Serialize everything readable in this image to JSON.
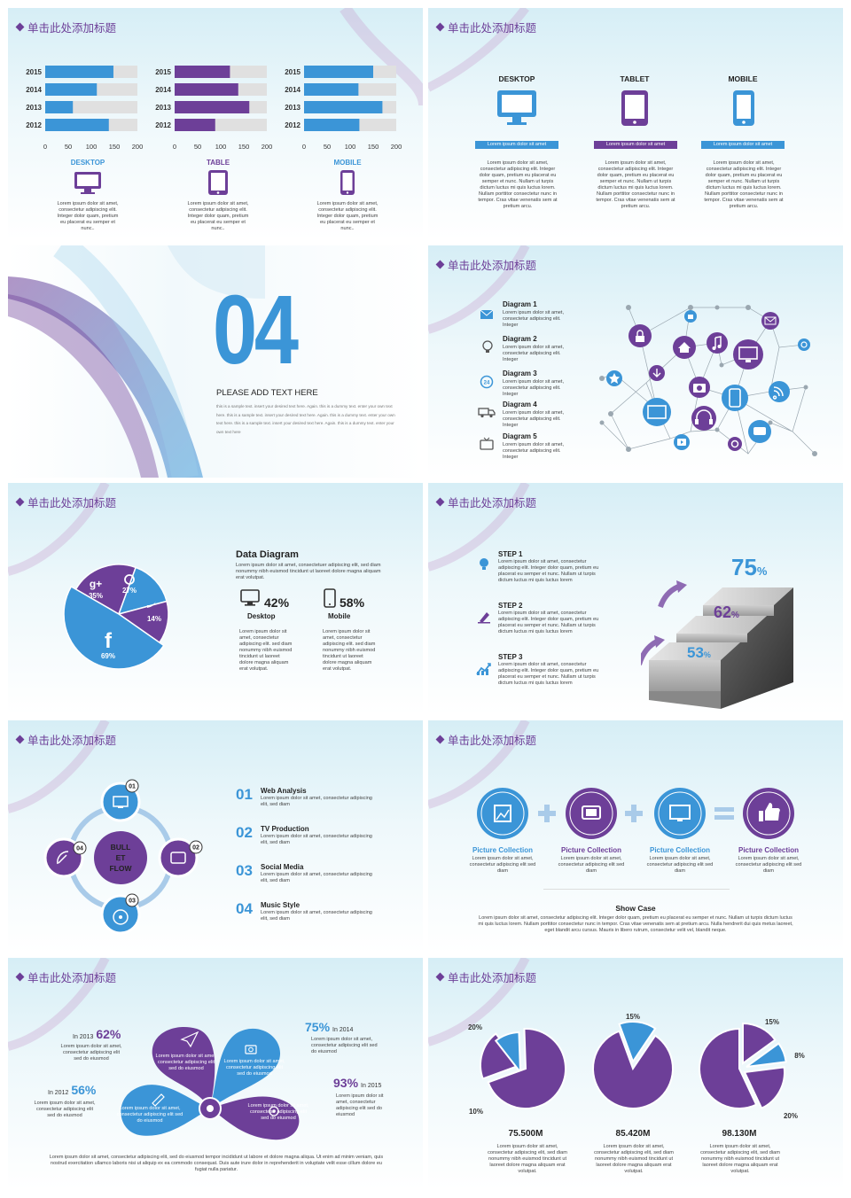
{
  "slide_title": "单击此处添加标题",
  "lorem_short": "Lorem ipsum dolor sit amet, consectetur adipiscing elit. Integer dolor quam, pretium eu placerat eu semper et nunc..",
  "lorem_mid": "Lorem ipsum dolor sit amet, consectetur adipiscing elit. Integer dolor quam, pretium eu placerat eu semper et nunc. Nullam ut turpis dictum luctus mi quis luctus lorem. Nullam porttitor consectetur nunc in tempor. Cras vitae venenatis sem at pretium arcu.",
  "lorem_step": "Lorem ipsum dolor sit amet, consectetur adipiscing elit. Integer dolor quam, pretium eu placerat eu semper et nunc. Nullam ut turpis dictum luctus mi quis luctus lorem",
  "lorem_diagram": "Lorem ipsum dolor sit amet, consectetur adipiscing elit. Integer",
  "lorem_col": "Lorem ipsum dolor sit amet, consectetur adipiscing elit. sed diam nonummy nibh euismod tincidunt ut laoreet dolore magna aliquam erat volutpat.",
  "lorem_two": "Lorem ipsum dolor sit amet, consectetur adipiscing elit, sed diam",
  "lorem_seddo": "Lorem ipsum dolor sit amet, consectetur adipiscing elit sed do eiusmod",
  "slide1": {
    "chart_data": [
      {
        "type": "bar",
        "orientation": "horizontal",
        "categories": [
          "2015",
          "2014",
          "2013",
          "2012"
        ],
        "values": [
          148,
          112,
          60,
          138
        ],
        "xlim": [
          0,
          200
        ],
        "xticks": [
          "0",
          "50",
          "100",
          "150",
          "200"
        ],
        "color": "#3b95d7"
      },
      {
        "type": "bar",
        "orientation": "horizontal",
        "categories": [
          "2015",
          "2014",
          "2013",
          "2012"
        ],
        "values": [
          120,
          138,
          162,
          88
        ],
        "xlim": [
          0,
          200
        ],
        "xticks": [
          "0",
          "50",
          "100",
          "150",
          "200"
        ],
        "color": "#6d3f98"
      },
      {
        "type": "bar",
        "orientation": "horizontal",
        "categories": [
          "2015",
          "2014",
          "2013",
          "2012"
        ],
        "values": [
          150,
          118,
          170,
          120
        ],
        "xlim": [
          0,
          200
        ],
        "xticks": [
          "0",
          "50",
          "100",
          "150",
          "200"
        ],
        "color": "#3b95d7"
      }
    ],
    "labels": [
      "DESKTOP",
      "TABLE",
      "MOBILE"
    ]
  },
  "slide2": {
    "devices": [
      "DESKTOP",
      "TABLET",
      "MOBILE"
    ],
    "bar_text": "Lorem ipsum dolor sit amet"
  },
  "slide3": {
    "number": "04",
    "heading": "PLEASE ADD TEXT HERE",
    "body": "this is a sample text. insert your desired text here. Again. this is a dummy text. enter your own text here. this is a sample text. insert your desired text here. Again. this is a dummy text. enter your own text here. this is a sample text. insert your desired text here. Again. this is a dummy text. enter your own text here"
  },
  "slide4": {
    "diagrams": [
      "Diagram 1",
      "Diagram 2",
      "Diagram 3",
      "Diagram 4",
      "Diagram 5"
    ]
  },
  "slide5": {
    "title": "Data Diagram",
    "intro": "Lorem ipsum dolor sit amet, consectetuer adipiscing elit, sed diam nonummy nibh euismod tincidunt ut laoreet dolore magna aliquam erat volutpat.",
    "desktop_pct": "42%",
    "desktop_label": "Desktop",
    "mobile_pct": "58%",
    "mobile_label": "Mobile",
    "chart_data": {
      "type": "pie",
      "slices": [
        {
          "name": "google-plus",
          "value": 35,
          "label": "35%"
        },
        {
          "name": "pinterest",
          "value": 27,
          "label": "27%"
        },
        {
          "name": "twitter",
          "value": 14,
          "label": "14%"
        },
        {
          "name": "facebook",
          "value": 69,
          "label": "69%"
        }
      ]
    }
  },
  "slide6": {
    "steps": [
      "STEP 1",
      "STEP 2",
      "STEP 3"
    ],
    "pcts": [
      "75",
      "62",
      "53"
    ],
    "pct_sign": "%"
  },
  "slide7": {
    "center": [
      "BULL",
      "ET",
      "FLOW"
    ],
    "nodes": [
      "01",
      "02",
      "03",
      "04"
    ],
    "items": [
      {
        "num": "01",
        "title": "Web Analysis"
      },
      {
        "num": "02",
        "title": "TV Production"
      },
      {
        "num": "03",
        "title": "Social Media"
      },
      {
        "num": "04",
        "title": "Music Style"
      }
    ]
  },
  "slide8": {
    "caption": "Picture Collection",
    "sub": "Lorem ipsum dolor sit amet, consectetur adipiscing elit sed diam",
    "show_title": "Show Case",
    "show_text": "Lorem ipsum dolor sit amet, consectetur adipiscing elit. Integer dolor quam, pretium eu placerat eu semper et nunc. Nullam ut turpis dictum luctus mi quis luctus lorem. Nullam porttitor consectetur nunc in tempor. Cras vitae venenatis sem at pretium arcu. Nulla hendrerit dui quis metus laoreet, eget blandit arcu cursus. Mauris in libero rutrum, consectetur velit vel, blandit neque."
  },
  "slide9": {
    "stats": [
      {
        "year": "In 2013",
        "pct": "62%"
      },
      {
        "year": "In 2012",
        "pct": "56%"
      },
      {
        "year": "In 2014",
        "pct": "75%"
      },
      {
        "year": "In 2015",
        "pct": "93%"
      }
    ],
    "petal_text": "Lorem ipsum dolor sit amet, consectetur adipiscing elit sed do eiusmod",
    "footer": "Lorem ipsum dolor sit amet, consectetur adipiscing elit, sed do eiusmod tempor incididunt ut labore et dolore magna aliqua. Ut enim ad minim veniam, quis nostrud exercitation ullamco laboris nisi ut aliquip ex ea commodo consequat. Duis aute irure dolor in reprehenderit in voluptate velit esse cillum dolore eu fugiat nulla pariatur."
  },
  "slide10": {
    "chart_data": [
      {
        "type": "pie",
        "total": "75.500M",
        "slices": [
          {
            "label": "20%",
            "value": 20
          },
          {
            "label": "10%",
            "value": 10
          },
          {
            "value": 70
          }
        ]
      },
      {
        "type": "pie",
        "total": "85.420M",
        "slices": [
          {
            "label": "15%",
            "value": 15
          },
          {
            "value": 85
          }
        ]
      },
      {
        "type": "pie",
        "total": "98.130M",
        "slices": [
          {
            "label": "15%",
            "value": 15
          },
          {
            "label": "8%",
            "value": 8
          },
          {
            "label": "20%",
            "value": 20
          },
          {
            "value": 57
          }
        ]
      }
    ],
    "desc": "Lorem ipsum dolor sit amet, consectetur adipiscing elit, sed diam nonummy nibh euismod tincidunt ut laoreet dolore magna aliquam erat volutpat."
  }
}
